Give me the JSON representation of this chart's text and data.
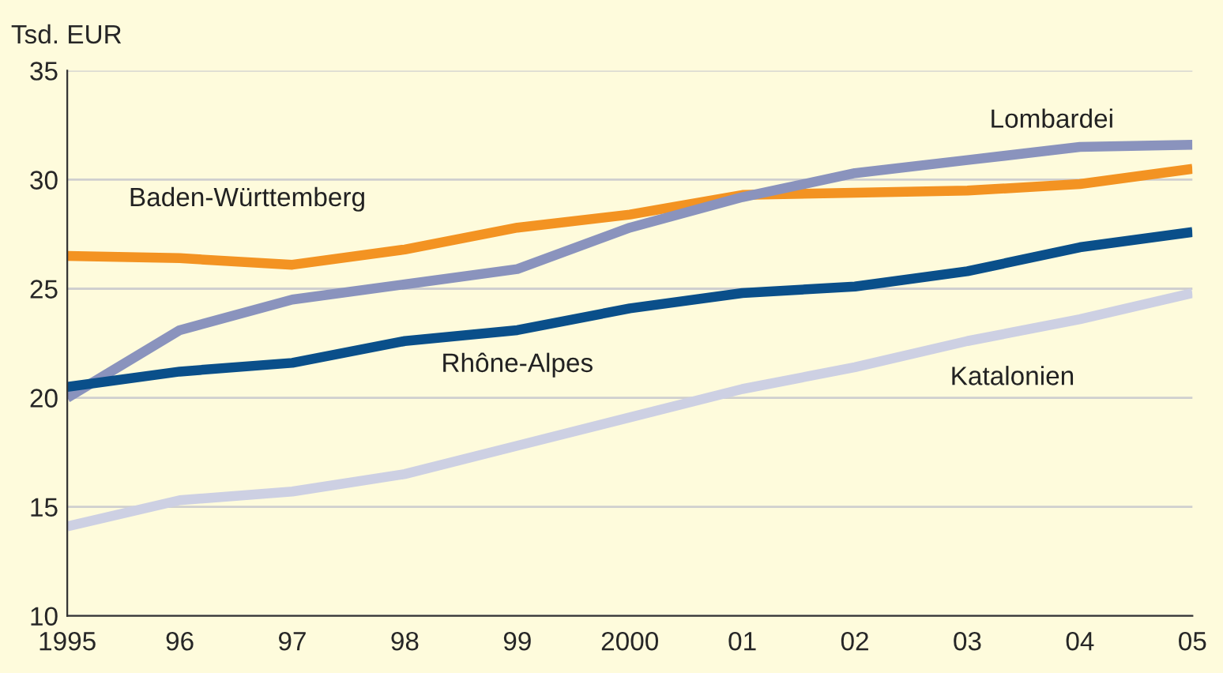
{
  "chart_data": {
    "type": "line",
    "ylabel": "Tsd. EUR",
    "categories": [
      "1995",
      "96",
      "97",
      "98",
      "99",
      "2000",
      "01",
      "02",
      "03",
      "04",
      "05"
    ],
    "series": [
      {
        "name": "Baden-Württemberg",
        "color": "#f39322",
        "values": [
          26.5,
          26.4,
          26.1,
          26.8,
          27.8,
          28.4,
          29.3,
          29.4,
          29.5,
          29.8,
          30.5
        ]
      },
      {
        "name": "Lombardei",
        "color": "#8a93bd",
        "values": [
          20.0,
          23.1,
          24.5,
          25.2,
          25.9,
          27.8,
          29.2,
          30.3,
          30.9,
          31.5,
          31.6
        ]
      },
      {
        "name": "Rhône-Alpes",
        "color": "#0a4f8a",
        "values": [
          20.5,
          21.2,
          21.6,
          22.6,
          23.1,
          24.1,
          24.8,
          25.1,
          25.8,
          26.9,
          27.6
        ]
      },
      {
        "name": "Katalonien",
        "color": "#cdd0e3",
        "values": [
          14.1,
          15.3,
          15.7,
          16.5,
          17.8,
          19.1,
          20.4,
          21.4,
          22.6,
          23.6,
          24.8
        ]
      }
    ],
    "ylim": [
      10,
      35
    ],
    "yticks": [
      10,
      15,
      20,
      25,
      30,
      35
    ],
    "grid": "y",
    "legend": false,
    "marker": "none",
    "line_style": "solid"
  }
}
